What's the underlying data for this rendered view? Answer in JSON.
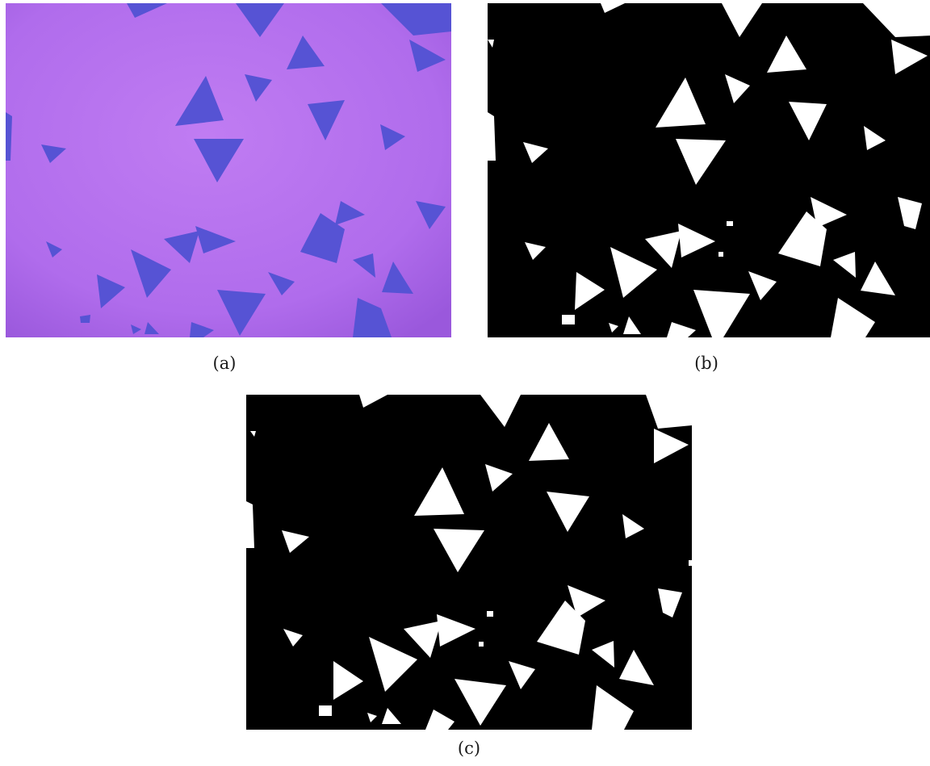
{
  "figure": {
    "panels": [
      {
        "id": "a",
        "caption": "(a)",
        "kind": "optical-micrograph"
      },
      {
        "id": "b",
        "caption": "(b)",
        "kind": "binary-segmentation"
      },
      {
        "id": "c",
        "caption": "(c)",
        "kind": "binary-segmentation"
      }
    ]
  },
  "colors": {
    "substrate": "#b46ef0",
    "flake": "#5a57d6",
    "mask_background": "#000000",
    "mask_foreground": "#ffffff",
    "page": "#ffffff"
  }
}
